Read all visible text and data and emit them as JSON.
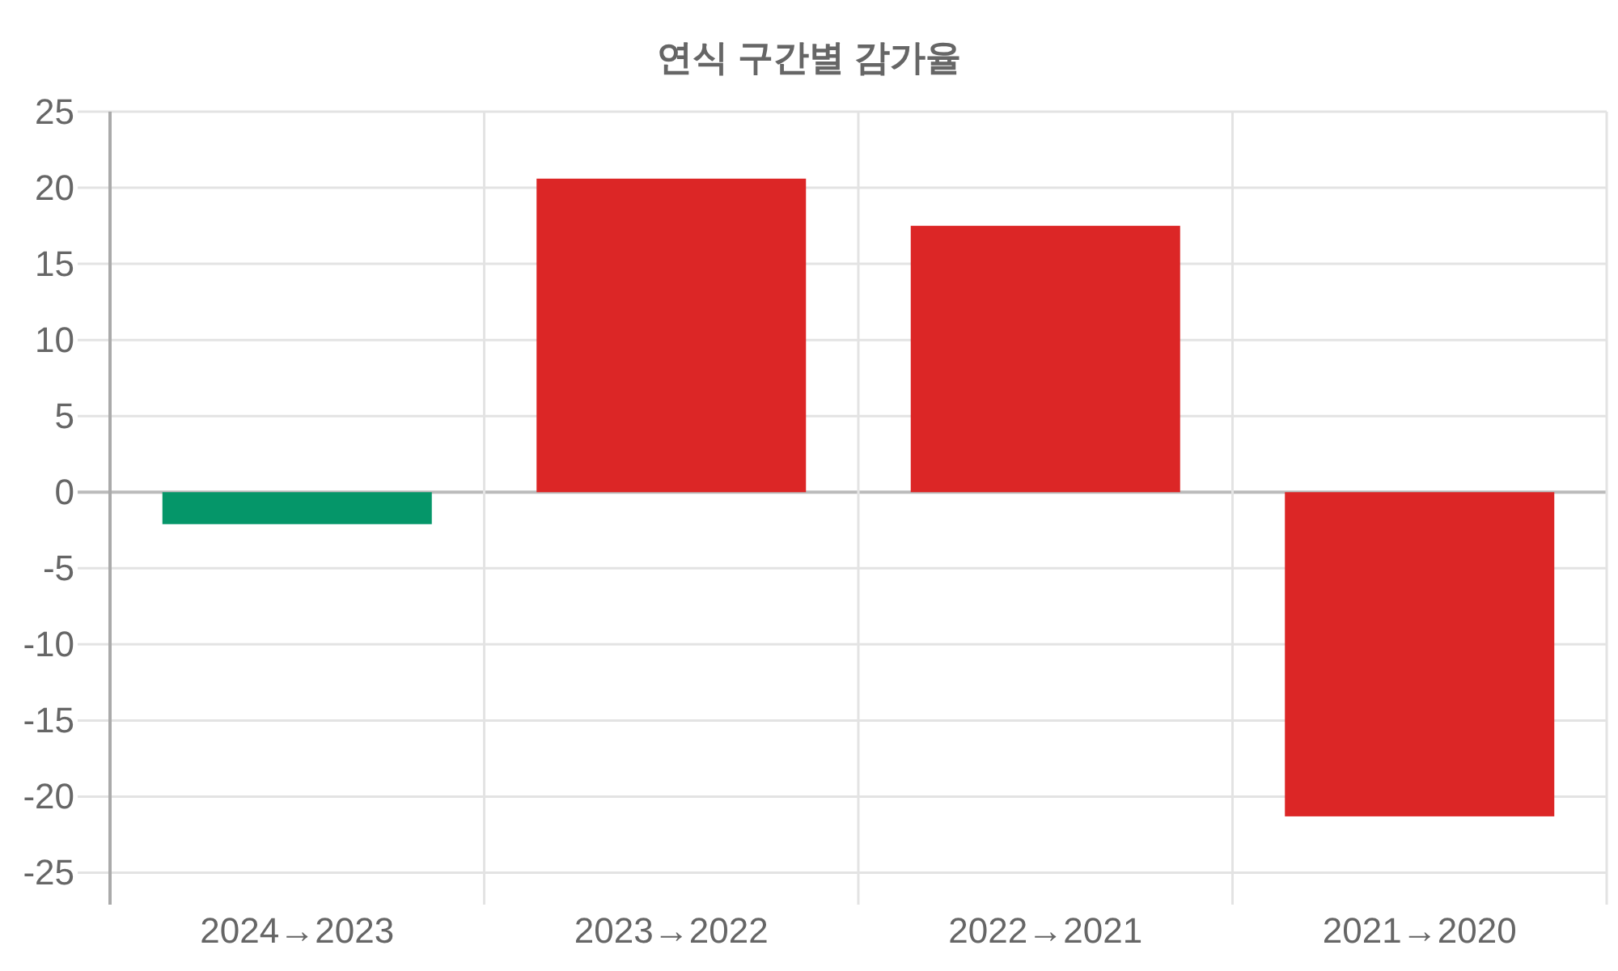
{
  "chart_data": {
    "type": "bar",
    "title": "연식 구간별 감가율",
    "categories": [
      "2024→2023",
      "2023→2022",
      "2022→2021",
      "2021→2020"
    ],
    "values": [
      -2.1,
      20.6,
      17.5,
      -21.3
    ],
    "colors": [
      "#059669",
      "#dc2626",
      "#dc2626",
      "#dc2626"
    ],
    "ylim": [
      -27.1,
      25
    ],
    "yticks": [
      -25,
      -20,
      -15,
      -10,
      -5,
      0,
      5,
      10,
      15,
      20,
      25
    ],
    "grid": true
  }
}
